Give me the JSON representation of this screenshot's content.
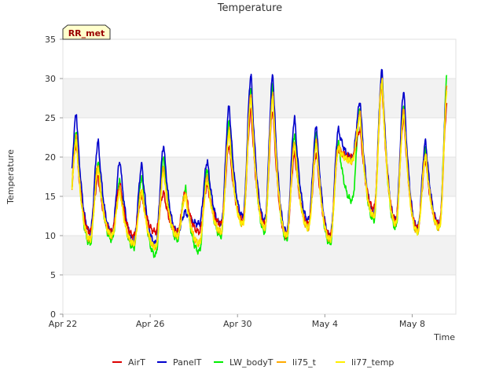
{
  "chart_data": {
    "type": "line",
    "title": "Temperature",
    "xlabel": "Time",
    "ylabel": "Temperature",
    "badge": "RR_met",
    "ylim": [
      0,
      35
    ],
    "yticks": [
      0,
      5,
      10,
      15,
      20,
      25,
      30,
      35
    ],
    "xlim": [
      "2024-04-22",
      "2024-05-10"
    ],
    "xticks": [
      {
        "date": "2024-04-22",
        "label": "Apr 22"
      },
      {
        "date": "2024-04-26",
        "label": "Apr 26"
      },
      {
        "date": "2024-04-30",
        "label": "Apr 30"
      },
      {
        "date": "2024-05-04",
        "label": "May 4"
      },
      {
        "date": "2024-05-08",
        "label": "May 8"
      }
    ],
    "grid": true,
    "legend_position": "bottom",
    "days": [
      "2024-04-22",
      "2024-04-23",
      "2024-04-24",
      "2024-04-25",
      "2024-04-26",
      "2024-04-27",
      "2024-04-28",
      "2024-04-29",
      "2024-04-30",
      "2024-05-01",
      "2024-05-02",
      "2024-05-03",
      "2024-05-04",
      "2024-05-05",
      "2024-05-06",
      "2024-05-07",
      "2024-05-08",
      "2024-05-09"
    ],
    "series": [
      {
        "name": "AirT",
        "color": "#dd0000",
        "daily_max": [
          21.5,
          17.5,
          16.5,
          15,
          15.5,
          15.5,
          16.5,
          21.5,
          26,
          26,
          20.5,
          20.5,
          21,
          23.5,
          29,
          25,
          19.5,
          27.5
        ],
        "daily_min": [
          12.5,
          10.5,
          10.5,
          10,
          10.5,
          10.5,
          10.5,
          11.5,
          12,
          11.5,
          10,
          11.5,
          10,
          20,
          13.5,
          12,
          11,
          11.5
        ]
      },
      {
        "name": "PanelT",
        "color": "#0000cc",
        "daily_max": [
          25.5,
          22,
          19.5,
          19,
          21.5,
          13,
          19.5,
          26.5,
          30.5,
          30.5,
          25,
          24,
          23.5,
          27,
          31,
          28.5,
          22,
          30
        ],
        "daily_min": [
          13,
          10.5,
          10.5,
          9.5,
          9,
          10.5,
          11.5,
          11.5,
          12.5,
          12,
          10.5,
          12,
          10,
          20,
          13,
          12,
          11,
          11.5
        ]
      },
      {
        "name": "LW_bodyT",
        "color": "#00ee00",
        "daily_max": [
          23,
          19.5,
          17,
          17.5,
          20,
          16,
          18.5,
          24.5,
          29,
          29,
          23,
          23,
          22,
          26,
          30.5,
          26.5,
          21,
          31
        ],
        "daily_min": [
          11,
          9,
          9.5,
          8.5,
          7.5,
          9.5,
          8,
          10,
          11.5,
          10.5,
          9.5,
          11,
          9,
          14.5,
          12,
          11,
          10.5,
          11
        ]
      },
      {
        "name": "li75_t",
        "color": "#ffaa00",
        "daily_max": [
          22.5,
          19,
          16,
          16,
          18.5,
          15.5,
          17.5,
          23.5,
          28,
          28,
          22,
          22,
          21.5,
          25.5,
          30,
          26,
          20.5,
          29.5
        ],
        "daily_min": [
          11.5,
          9.5,
          10,
          9,
          8.5,
          10,
          9,
          10.5,
          11.5,
          11,
          10,
          11,
          9.5,
          19.5,
          12.5,
          11.5,
          10.5,
          11
        ]
      },
      {
        "name": "li77_temp",
        "color": "#ffee00",
        "daily_max": [
          22,
          18.5,
          15.5,
          15.5,
          18,
          15,
          17,
          23,
          27.5,
          27.5,
          21.5,
          21.5,
          21,
          25,
          29.5,
          25.5,
          20,
          29
        ],
        "daily_min": [
          11.5,
          9.5,
          10,
          9,
          8.5,
          10,
          9,
          10.5,
          11.5,
          11,
          10,
          11,
          9.5,
          19.5,
          12.5,
          11.5,
          10.5,
          11
        ]
      }
    ]
  }
}
